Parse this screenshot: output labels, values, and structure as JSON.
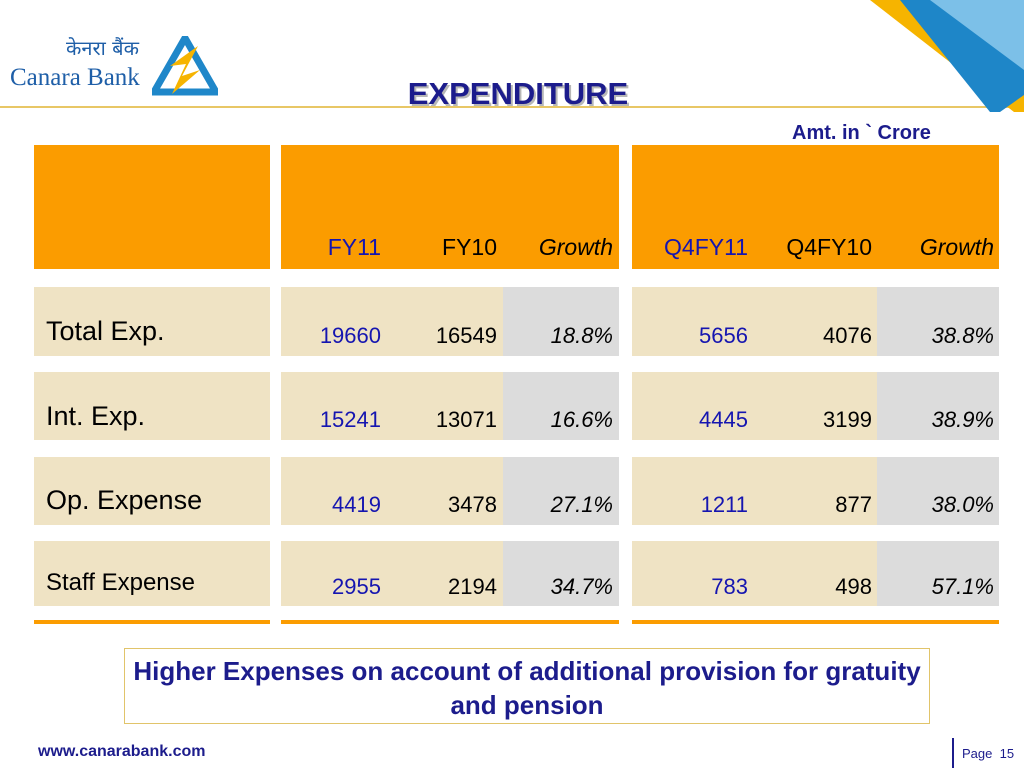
{
  "brand": {
    "hindi_name": "केनरा बैंक",
    "english_name": "Canara Bank"
  },
  "title": "EXPENDITURE",
  "unit_label": "Amt. in ` Crore",
  "table": {
    "columns": [
      "FY11",
      "FY10",
      "Growth",
      "Q4FY11",
      "Q4FY10",
      "Growth"
    ],
    "rows": [
      {
        "label": "Total Exp.",
        "values": [
          "19660",
          "16549",
          "18.8%",
          "5656",
          "4076",
          "38.8%"
        ]
      },
      {
        "label": "Int. Exp.",
        "values": [
          "15241",
          "13071",
          "16.6%",
          "4445",
          "3199",
          "38.9%"
        ]
      },
      {
        "label": "Op. Expense",
        "values": [
          "4419",
          "3478",
          "27.1%",
          "1211",
          "877",
          "38.0%"
        ]
      },
      {
        "label": "Staff Expense",
        "values": [
          "2955",
          "2194",
          "34.7%",
          "783",
          "498",
          "57.1%"
        ]
      }
    ]
  },
  "note": "Higher Expenses on account of additional provision for gratuity and pension",
  "footer": {
    "url": "www.canarabank.com",
    "page_label": "Page",
    "page_number": "15"
  },
  "colors": {
    "header_orange": "#fb9c00",
    "row_beige": "#efe3c4",
    "growth_grey": "#dcdcdc",
    "title_blue": "#1c1c8c"
  }
}
